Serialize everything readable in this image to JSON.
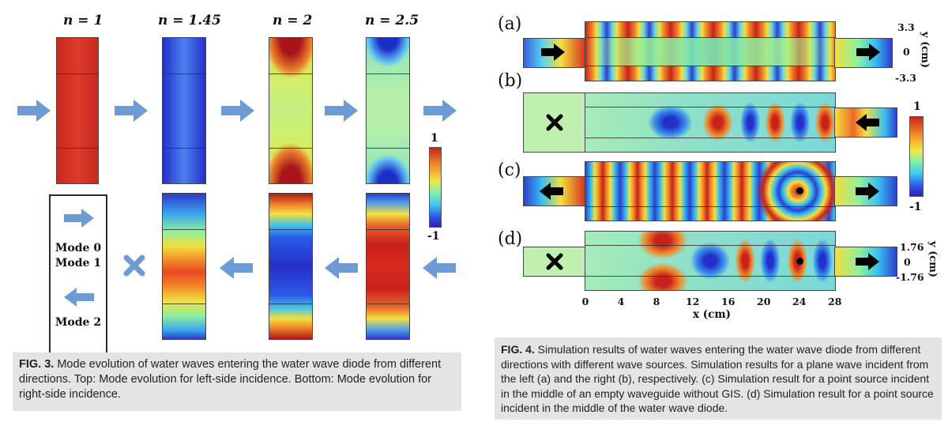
{
  "fig3": {
    "n_labels": [
      "n = 1",
      "n = 1.45",
      "n = 2",
      "n = 2.5"
    ],
    "legend": {
      "mode0": "Mode 0",
      "mode1": "Mode 1",
      "mode2": "Mode 2"
    },
    "colorbar": {
      "max": "1",
      "min": "-1"
    },
    "caption_label": "FIG. 3.",
    "caption_text": " Mode evolution of water waves entering the water wave diode from different directions. Top: Mode evolution for left-side incidence. Bottom: Mode evolution for right-side incidence."
  },
  "fig4": {
    "panel_labels": [
      "(a)",
      "(b)",
      "(c)",
      "(d)"
    ],
    "y_a": {
      "top": "3.3",
      "mid": "0",
      "bot": "-3.3"
    },
    "y_d": {
      "top": "1.76",
      "mid": "0",
      "bot": "-1.76"
    },
    "y_title": "y (cm)",
    "colorbar": {
      "max": "1",
      "min": "-1"
    },
    "x_ticks": [
      "0",
      "4",
      "8",
      "12",
      "16",
      "20",
      "24",
      "28"
    ],
    "x_title": "x (cm)",
    "caption_label": "FIG. 4.",
    "caption_text": " Simulation results of water waves entering the water wave diode from different directions with different wave sources. Simulation results for a plane wave incident from the left (a) and the right (b), respectively. (c) Simulation result for a point source incident in the middle of an empty waveguide without GIS. (d) Simulation result for a point source incident in the middle of the water wave diode."
  },
  "colors": {
    "arrow": "#6f9bd4",
    "red": "#c8221c",
    "blue": "#2b3fd0",
    "frame": "#1f2d44"
  }
}
